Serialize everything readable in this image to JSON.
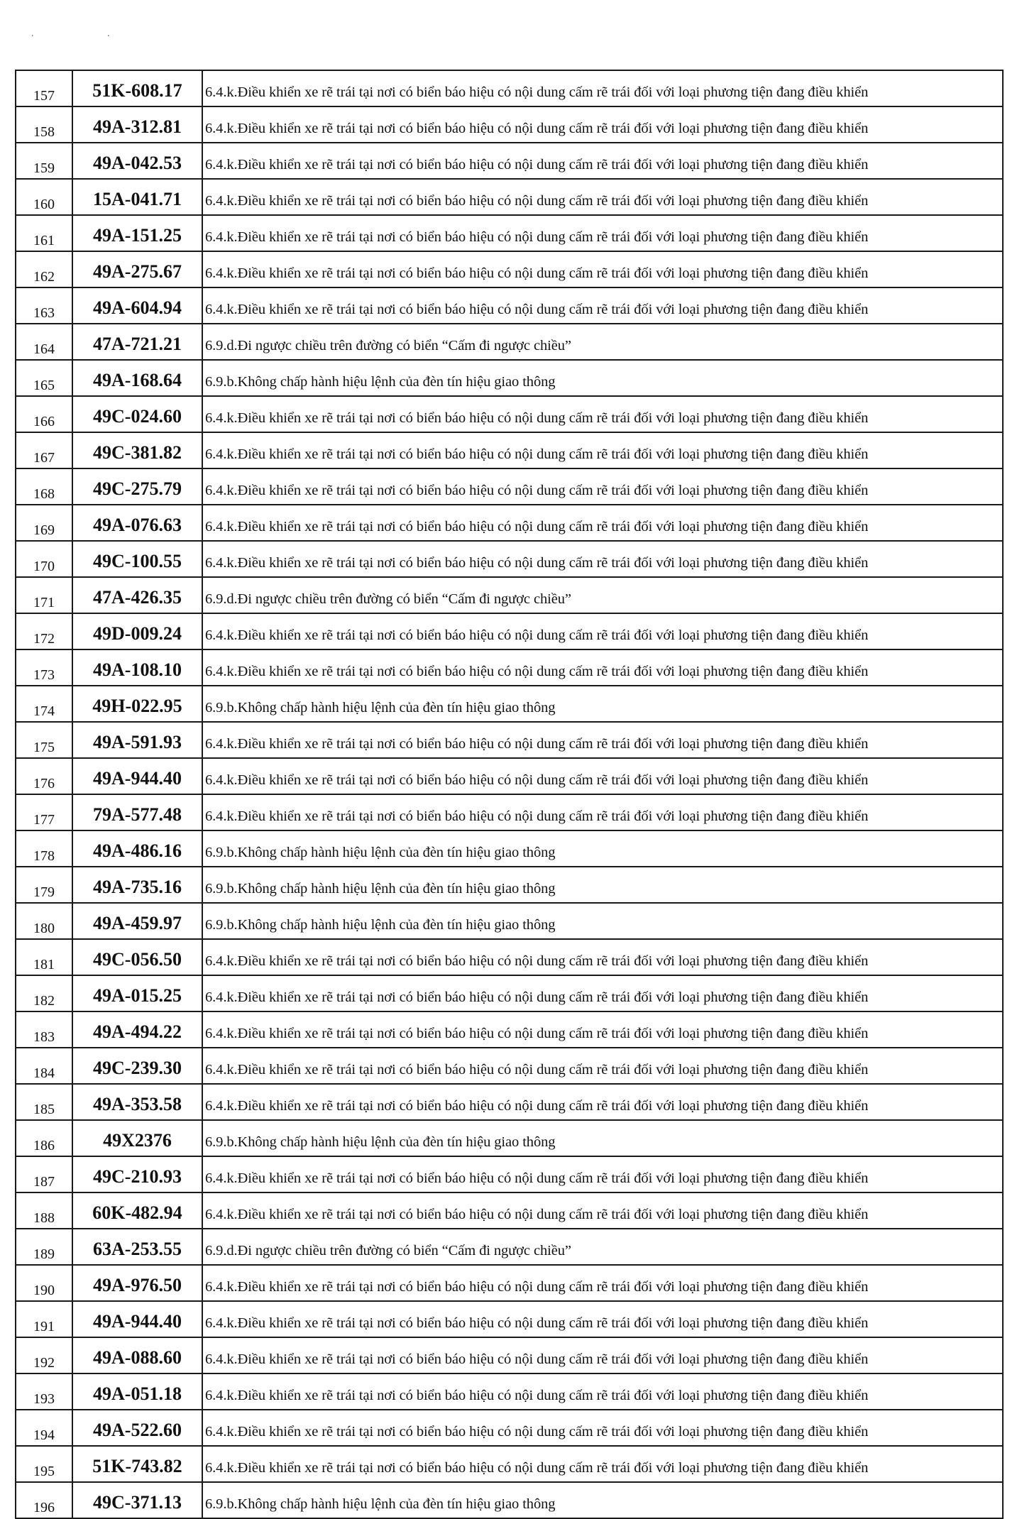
{
  "page_marks": ". .",
  "rows": [
    {
      "no": "157",
      "plate": "51K-608.17",
      "violation": "6.4.k.Điều khiển xe rẽ trái tại nơi có biển báo hiệu có nội dung cấm rẽ trái đối với loại phương tiện đang điều khiển"
    },
    {
      "no": "158",
      "plate": "49A-312.81",
      "violation": "6.4.k.Điều khiển xe rẽ trái tại nơi có biển báo hiệu có nội dung cấm rẽ trái đối với loại phương tiện đang điều khiển"
    },
    {
      "no": "159",
      "plate": "49A-042.53",
      "violation": "6.4.k.Điều khiển xe rẽ trái tại nơi có biển báo hiệu có nội dung cấm rẽ trái đối với loại phương tiện đang điều khiển"
    },
    {
      "no": "160",
      "plate": "15A-041.71",
      "violation": "6.4.k.Điều khiển xe rẽ trái tại nơi có biển báo hiệu có nội dung cấm rẽ trái đối với loại phương tiện đang điều khiển"
    },
    {
      "no": "161",
      "plate": "49A-151.25",
      "violation": "6.4.k.Điều khiển xe rẽ trái tại nơi có biển báo hiệu có nội dung cấm rẽ trái đối với loại phương tiện đang điều khiển"
    },
    {
      "no": "162",
      "plate": "49A-275.67",
      "violation": "6.4.k.Điều khiển xe rẽ trái tại nơi có biển báo hiệu có nội dung cấm rẽ trái đối với loại phương tiện đang điều khiển"
    },
    {
      "no": "163",
      "plate": "49A-604.94",
      "violation": "6.4.k.Điều khiển xe rẽ trái tại nơi có biển báo hiệu có nội dung cấm rẽ trái đối với loại phương tiện đang điều khiển"
    },
    {
      "no": "164",
      "plate": "47A-721.21",
      "violation": "6.9.d.Đi ngược chiều trên đường có biển “Cấm đi ngược chiều”"
    },
    {
      "no": "165",
      "plate": "49A-168.64",
      "violation": "6.9.b.Không chấp hành hiệu lệnh của đèn tín hiệu giao thông"
    },
    {
      "no": "166",
      "plate": "49C-024.60",
      "violation": "6.4.k.Điều khiển xe rẽ trái tại nơi có biển báo hiệu có nội dung cấm rẽ trái đối với loại phương tiện đang điều khiển"
    },
    {
      "no": "167",
      "plate": "49C-381.82",
      "violation": "6.4.k.Điều khiển xe rẽ trái tại nơi có biển báo hiệu có nội dung cấm rẽ trái đối với loại phương tiện đang điều khiển"
    },
    {
      "no": "168",
      "plate": "49C-275.79",
      "violation": "6.4.k.Điều khiển xe rẽ trái tại nơi có biển báo hiệu có nội dung cấm rẽ trái đối với loại phương tiện đang điều khiển"
    },
    {
      "no": "169",
      "plate": "49A-076.63",
      "violation": "6.4.k.Điều khiển xe rẽ trái tại nơi có biển báo hiệu có nội dung cấm rẽ trái đối với loại phương tiện đang điều khiển"
    },
    {
      "no": "170",
      "plate": "49C-100.55",
      "violation": "6.4.k.Điều khiển xe rẽ trái tại nơi có biển báo hiệu có nội dung cấm rẽ trái đối với loại phương tiện đang điều khiển"
    },
    {
      "no": "171",
      "plate": "47A-426.35",
      "violation": "6.9.d.Đi ngược chiều trên đường có biển “Cấm đi ngược chiều”"
    },
    {
      "no": "172",
      "plate": "49D-009.24",
      "violation": "6.4.k.Điều khiển xe rẽ trái tại nơi có biển báo hiệu có nội dung cấm rẽ trái đối với loại phương tiện đang điều khiển"
    },
    {
      "no": "173",
      "plate": "49A-108.10",
      "violation": "6.4.k.Điều khiển xe rẽ trái tại nơi có biển báo hiệu có nội dung cấm rẽ trái đối với loại phương tiện đang điều khiển"
    },
    {
      "no": "174",
      "plate": "49H-022.95",
      "violation": "6.9.b.Không chấp hành hiệu lệnh của đèn tín hiệu giao thông"
    },
    {
      "no": "175",
      "plate": "49A-591.93",
      "violation": "6.4.k.Điều khiển xe rẽ trái tại nơi có biển báo hiệu có nội dung cấm rẽ trái đối với loại phương tiện đang điều khiển"
    },
    {
      "no": "176",
      "plate": "49A-944.40",
      "violation": "6.4.k.Điều khiển xe rẽ trái tại nơi có biển báo hiệu có nội dung cấm rẽ trái đối với loại phương tiện đang điều khiển"
    },
    {
      "no": "177",
      "plate": "79A-577.48",
      "violation": "6.4.k.Điều khiển xe rẽ trái tại nơi có biển báo hiệu có nội dung cấm rẽ trái đối với loại phương tiện đang điều khiển"
    },
    {
      "no": "178",
      "plate": "49A-486.16",
      "violation": "6.9.b.Không chấp hành hiệu lệnh của đèn tín hiệu giao thông"
    },
    {
      "no": "179",
      "plate": "49A-735.16",
      "violation": "6.9.b.Không chấp hành hiệu lệnh của đèn tín hiệu giao thông"
    },
    {
      "no": "180",
      "plate": "49A-459.97",
      "violation": "6.9.b.Không chấp hành hiệu lệnh của đèn tín hiệu giao thông"
    },
    {
      "no": "181",
      "plate": "49C-056.50",
      "violation": "6.4.k.Điều khiển xe rẽ trái tại nơi có biển báo hiệu có nội dung cấm rẽ trái đối với loại phương tiện đang điều khiển"
    },
    {
      "no": "182",
      "plate": "49A-015.25",
      "violation": "6.4.k.Điều khiển xe rẽ trái tại nơi có biển báo hiệu có nội dung cấm rẽ trái đối với loại phương tiện đang điều khiển"
    },
    {
      "no": "183",
      "plate": "49A-494.22",
      "violation": "6.4.k.Điều khiển xe rẽ trái tại nơi có biển báo hiệu có nội dung cấm rẽ trái đối với loại phương tiện đang điều khiển"
    },
    {
      "no": "184",
      "plate": "49C-239.30",
      "violation": "6.4.k.Điều khiển xe rẽ trái tại nơi có biển báo hiệu có nội dung cấm rẽ trái đối với loại phương tiện đang điều khiển"
    },
    {
      "no": "185",
      "plate": "49A-353.58",
      "violation": "6.4.k.Điều khiển xe rẽ trái tại nơi có biển báo hiệu có nội dung cấm rẽ trái đối với loại phương tiện đang điều khiển"
    },
    {
      "no": "186",
      "plate": "49X2376",
      "violation": "6.9.b.Không chấp hành hiệu lệnh của đèn tín hiệu giao thông"
    },
    {
      "no": "187",
      "plate": "49C-210.93",
      "violation": "6.4.k.Điều khiển xe rẽ trái tại nơi có biển báo hiệu có nội dung cấm rẽ trái đối với loại phương tiện đang điều khiển"
    },
    {
      "no": "188",
      "plate": "60K-482.94",
      "violation": "6.4.k.Điều khiển xe rẽ trái tại nơi có biển báo hiệu có nội dung cấm rẽ trái đối với loại phương tiện đang điều khiển"
    },
    {
      "no": "189",
      "plate": "63A-253.55",
      "violation": "6.9.d.Đi ngược chiều trên đường có biển “Cấm đi ngược chiều”"
    },
    {
      "no": "190",
      "plate": "49A-976.50",
      "violation": "6.4.k.Điều khiển xe rẽ trái tại nơi có biển báo hiệu có nội dung cấm rẽ trái đối với loại phương tiện đang điều khiển"
    },
    {
      "no": "191",
      "plate": "49A-944.40",
      "violation": "6.4.k.Điều khiển xe rẽ trái tại nơi có biển báo hiệu có nội dung cấm rẽ trái đối với loại phương tiện đang điều khiển"
    },
    {
      "no": "192",
      "plate": "49A-088.60",
      "violation": "6.4.k.Điều khiển xe rẽ trái tại nơi có biển báo hiệu có nội dung cấm rẽ trái đối với loại phương tiện đang điều khiển"
    },
    {
      "no": "193",
      "plate": "49A-051.18",
      "violation": "6.4.k.Điều khiển xe rẽ trái tại nơi có biển báo hiệu có nội dung cấm rẽ trái đối với loại phương tiện đang điều khiển"
    },
    {
      "no": "194",
      "plate": "49A-522.60",
      "violation": "6.4.k.Điều khiển xe rẽ trái tại nơi có biển báo hiệu có nội dung cấm rẽ trái đối với loại phương tiện đang điều khiển"
    },
    {
      "no": "195",
      "plate": "51K-743.82",
      "violation": "6.4.k.Điều khiển xe rẽ trái tại nơi có biển báo hiệu có nội dung cấm rẽ trái đối với loại phương tiện đang điều khiển"
    },
    {
      "no": "196",
      "plate": "49C-371.13",
      "violation": "6.9.b.Không chấp hành hiệu lệnh của đèn tín hiệu giao thông"
    }
  ]
}
